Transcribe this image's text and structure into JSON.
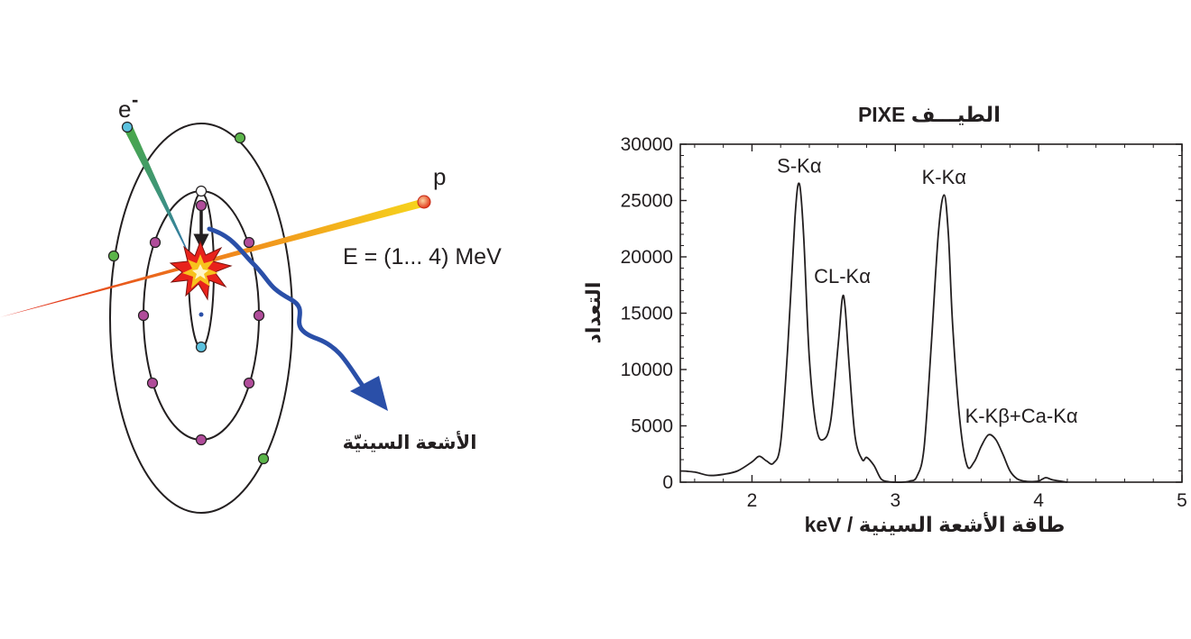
{
  "diagram": {
    "electron_label": "e",
    "electron_superscript": "-",
    "proton_label": "p",
    "energy_label": "E = (1... 4) MeV",
    "xray_label": "الأشعة السينيّة",
    "colors": {
      "orbit": "#231f20",
      "electron_outer": "#5bb54a",
      "electron_mid": "#b04c9a",
      "electron_inner": "#5bc2df",
      "xray_arrow": "#2a4fa8",
      "proton_beam_start": "#e0251b",
      "proton_beam_end": "#f6d51c",
      "electron_beam_start": "#4aa846",
      "electron_beam_end": "#2f6db3"
    }
  },
  "chart_data": {
    "type": "line",
    "title": "الطيـــف PIXE",
    "xlabel": "طاقة الأشعة السينية  /  keV",
    "ylabel": "التعداد",
    "xlim": [
      1.5,
      5
    ],
    "ylim": [
      0,
      30000
    ],
    "x_ticks": [
      2,
      3,
      4,
      5
    ],
    "y_ticks": [
      0,
      5000,
      10000,
      15000,
      20000,
      25000,
      30000
    ],
    "grid": false,
    "series": [
      {
        "x": [
          1.5,
          1.6,
          1.7,
          1.8,
          1.9,
          2.0,
          2.05,
          2.1,
          2.15,
          2.2,
          2.25,
          2.3,
          2.33,
          2.36,
          2.4,
          2.45,
          2.5,
          2.55,
          2.6,
          2.63,
          2.65,
          2.68,
          2.72,
          2.77,
          2.8,
          2.85,
          2.9,
          2.95,
          3.0,
          3.05,
          3.1,
          3.15,
          3.2,
          3.25,
          3.3,
          3.34,
          3.37,
          3.4,
          3.45,
          3.5,
          3.55,
          3.6,
          3.65,
          3.7,
          3.75,
          3.8,
          3.85,
          3.9,
          3.95,
          4.0,
          4.05,
          4.1,
          4.2
        ],
        "y": [
          1000,
          900,
          600,
          700,
          1000,
          1800,
          2300,
          1900,
          1700,
          3500,
          12000,
          23500,
          26500,
          22000,
          11000,
          4800,
          3800,
          5500,
          12000,
          16300,
          15500,
          10000,
          4000,
          2000,
          2200,
          1500,
          300,
          50,
          0,
          0,
          100,
          500,
          3000,
          12000,
          22000,
          25500,
          22000,
          14000,
          5500,
          1500,
          1800,
          3200,
          4200,
          3800,
          2500,
          1000,
          300,
          100,
          50,
          100,
          400,
          200,
          0
        ]
      }
    ],
    "annotations": [
      {
        "text": "S-Kα",
        "x": 2.33,
        "y": 27500
      },
      {
        "text": "CL-Kα",
        "x": 2.63,
        "y": 17700
      },
      {
        "text": "K-Kα",
        "x": 3.34,
        "y": 26500
      },
      {
        "text": "K-Kβ+Ca-Kα",
        "x": 3.88,
        "y": 5300
      }
    ]
  }
}
